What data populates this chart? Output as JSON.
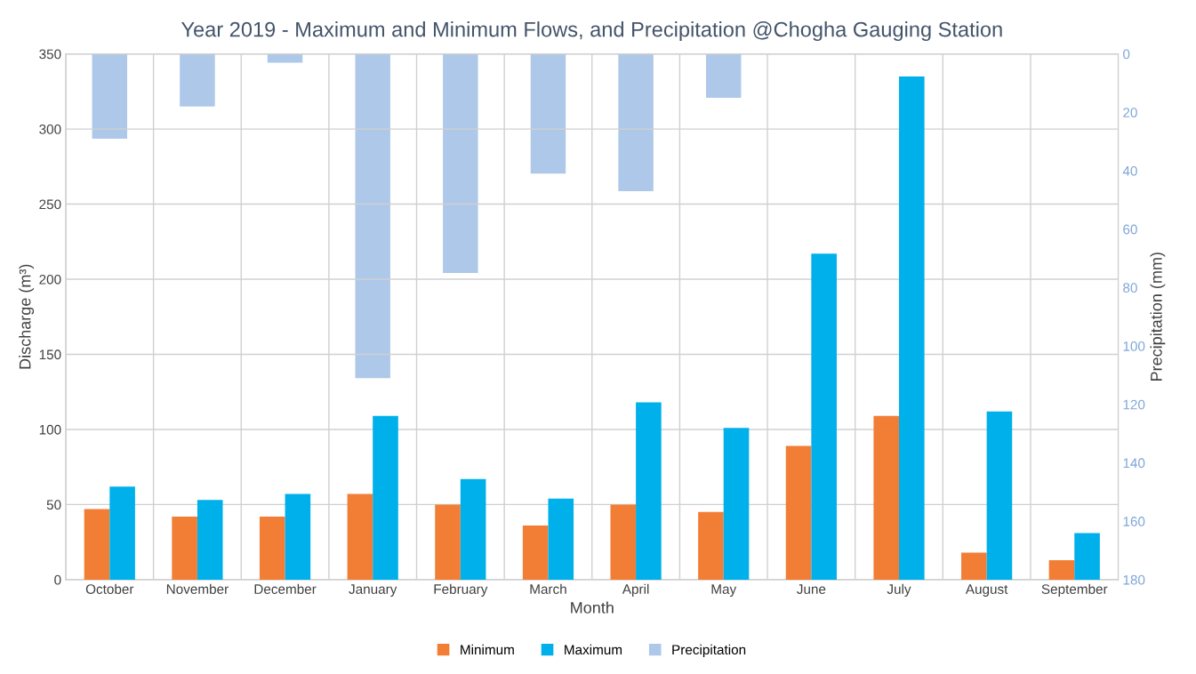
{
  "chart_data": {
    "type": "bar",
    "title": "Year 2019 - Maximum and Minimum Flows, and Precipitation @Chogha Gauging Station",
    "xlabel": "Month",
    "ylabel": "Discharge (m³)",
    "y2label": "Precipitation (mm)",
    "categories": [
      "October",
      "November",
      "December",
      "January",
      "February",
      "March",
      "April",
      "May",
      "June",
      "July",
      "August",
      "September"
    ],
    "series": [
      {
        "name": "Minimum",
        "color": "#f27e36",
        "values": [
          47,
          42,
          42,
          57,
          50,
          36,
          50,
          45,
          89,
          109,
          18,
          13
        ]
      },
      {
        "name": "Maximum",
        "color": "#00b0ea",
        "values": [
          62,
          53,
          57,
          109,
          67,
          54,
          118,
          101,
          217,
          335,
          112,
          31
        ]
      },
      {
        "name": "Precipitation",
        "color": "#adc8e8",
        "axis": "y2",
        "values": [
          29,
          18,
          3,
          111,
          75,
          41,
          47,
          15,
          0,
          0,
          0,
          0
        ]
      }
    ],
    "ylim": [
      0,
      350
    ],
    "yticks": [
      0,
      50,
      100,
      150,
      200,
      250,
      300,
      350
    ],
    "y2lim": [
      180,
      0
    ],
    "y2ticks": [
      0,
      20,
      40,
      60,
      80,
      100,
      120,
      140,
      160,
      180
    ],
    "grid": true,
    "legend": "bottom"
  }
}
